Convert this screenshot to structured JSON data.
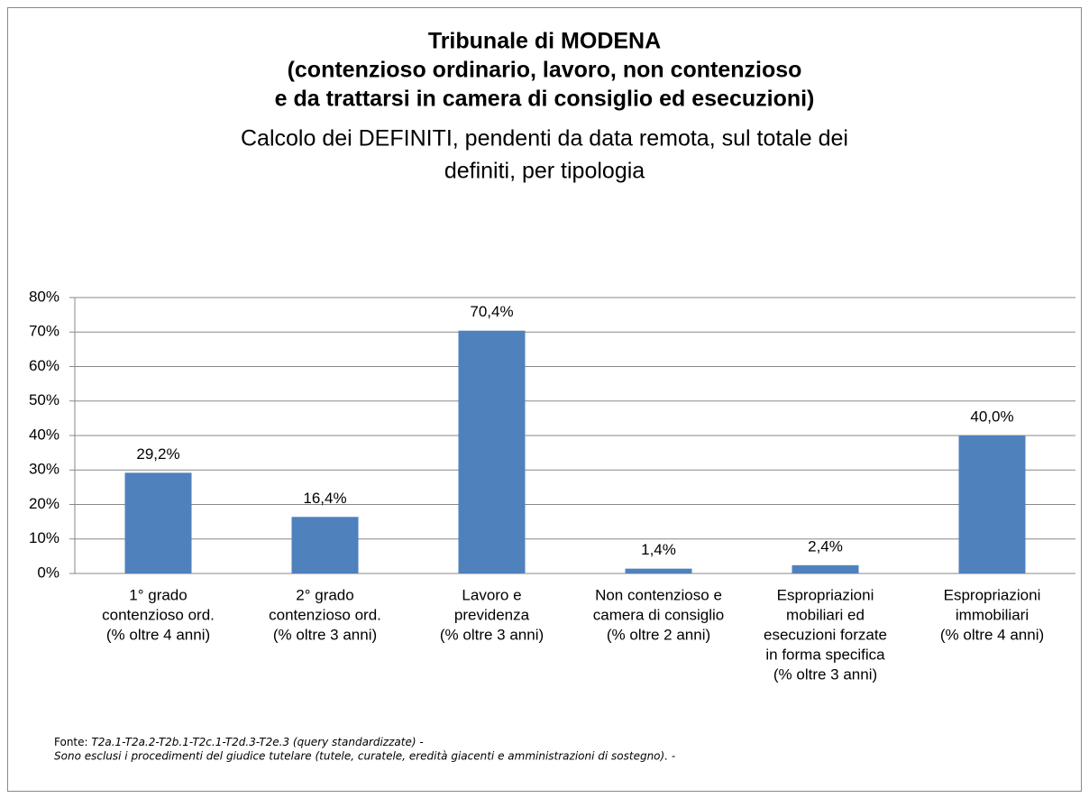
{
  "chart_data": {
    "type": "bar",
    "title": [
      "Tribunale di MODENA",
      "(contenzioso ordinario, lavoro, non contenzioso",
      "e da trattarsi in camera di consiglio ed esecuzioni)"
    ],
    "subtitle": [
      "Calcolo dei DEFINITI, pendenti da data remota, sul totale dei",
      "definiti, per tipologia"
    ],
    "categories": [
      [
        "1° grado",
        "contenzioso ord.",
        "(% oltre 4 anni)"
      ],
      [
        "2° grado",
        "contenzioso ord.",
        "(% oltre 3 anni)"
      ],
      [
        "Lavoro e",
        "previdenza",
        "(% oltre 3 anni)"
      ],
      [
        "Non contenzioso e",
        "camera di consiglio",
        "(% oltre 2 anni)"
      ],
      [
        "Espropriazioni",
        "mobiliari ed",
        "esecuzioni forzate",
        "in forma specifica",
        "(% oltre 3 anni)"
      ],
      [
        "Espropriazioni",
        "immobiliari",
        "(% oltre 4 anni)"
      ]
    ],
    "values": [
      29.2,
      16.4,
      70.4,
      1.4,
      2.4,
      40.0
    ],
    "value_labels": [
      "29,2%",
      "16,4%",
      "70,4%",
      "1,4%",
      "2,4%",
      "40,0%"
    ],
    "color": "#4f81bd",
    "ylim": [
      0,
      80
    ],
    "yticks": [
      {
        "value": 0,
        "label": "0%"
      },
      {
        "value": 10,
        "label": "10%"
      },
      {
        "value": 20,
        "label": "20%"
      },
      {
        "value": 30,
        "label": "30%"
      },
      {
        "value": 40,
        "label": "40%"
      },
      {
        "value": 50,
        "label": "50%"
      },
      {
        "value": 60,
        "label": "60%"
      },
      {
        "value": 70,
        "label": "70%"
      },
      {
        "value": 80,
        "label": "80%"
      }
    ],
    "grid": true,
    "source_label": "Fonte:",
    "source": "T2a.1-T2a.2-T2b.1-T2c.1-T2d.3-T2e.3 (query standardizzate) -",
    "note": "Sono esclusi i procedimenti del giudice tutelare (tutele, curatele, eredità giacenti e amministrazioni di sostegno). -"
  }
}
